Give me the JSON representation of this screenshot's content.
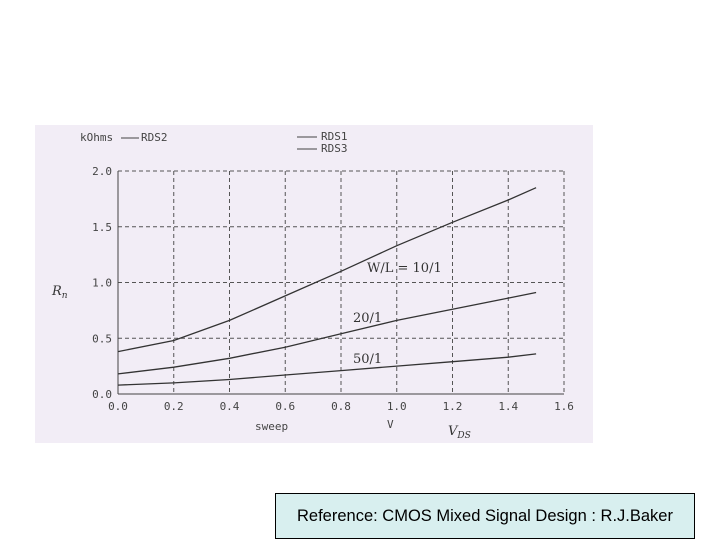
{
  "chart_data": {
    "type": "line",
    "xlabel": "sweep",
    "xunit": "V",
    "xvar": "V",
    "xvar_sub": "DS",
    "ylabel_unit": "kOhms",
    "ylabel_var": "R",
    "ylabel_sub": "n",
    "xlim": [
      0.0,
      1.6
    ],
    "ylim": [
      0.0,
      2.0
    ],
    "xticks": [
      "0.0",
      "0.2",
      "0.4",
      "0.6",
      "0.8",
      "1.0",
      "1.2",
      "1.4",
      "1.6"
    ],
    "yticks": [
      "0.0",
      "0.5",
      "1.0",
      "1.5",
      "2.0"
    ],
    "grid": true,
    "legend": [
      "RDS2",
      "RDS1",
      "RDS3"
    ],
    "series": [
      {
        "name": "RDS1",
        "annotation": "W/L = 10/1",
        "x": [
          0.0,
          0.2,
          0.4,
          0.6,
          0.8,
          1.0,
          1.2,
          1.4,
          1.5
        ],
        "y": [
          0.38,
          0.48,
          0.66,
          0.88,
          1.1,
          1.33,
          1.54,
          1.74,
          1.85
        ]
      },
      {
        "name": "RDS2",
        "annotation": "20/1",
        "x": [
          0.0,
          0.2,
          0.4,
          0.6,
          0.8,
          1.0,
          1.2,
          1.4,
          1.5
        ],
        "y": [
          0.18,
          0.24,
          0.32,
          0.42,
          0.54,
          0.66,
          0.76,
          0.86,
          0.91
        ]
      },
      {
        "name": "RDS3",
        "annotation": "50/1",
        "x": [
          0.0,
          0.2,
          0.4,
          0.6,
          0.8,
          1.0,
          1.2,
          1.4,
          1.5
        ],
        "y": [
          0.08,
          0.1,
          0.13,
          0.17,
          0.21,
          0.25,
          0.29,
          0.33,
          0.36
        ]
      }
    ]
  },
  "reference": "Reference: CMOS Mixed Signal Design :  R.J.Baker"
}
